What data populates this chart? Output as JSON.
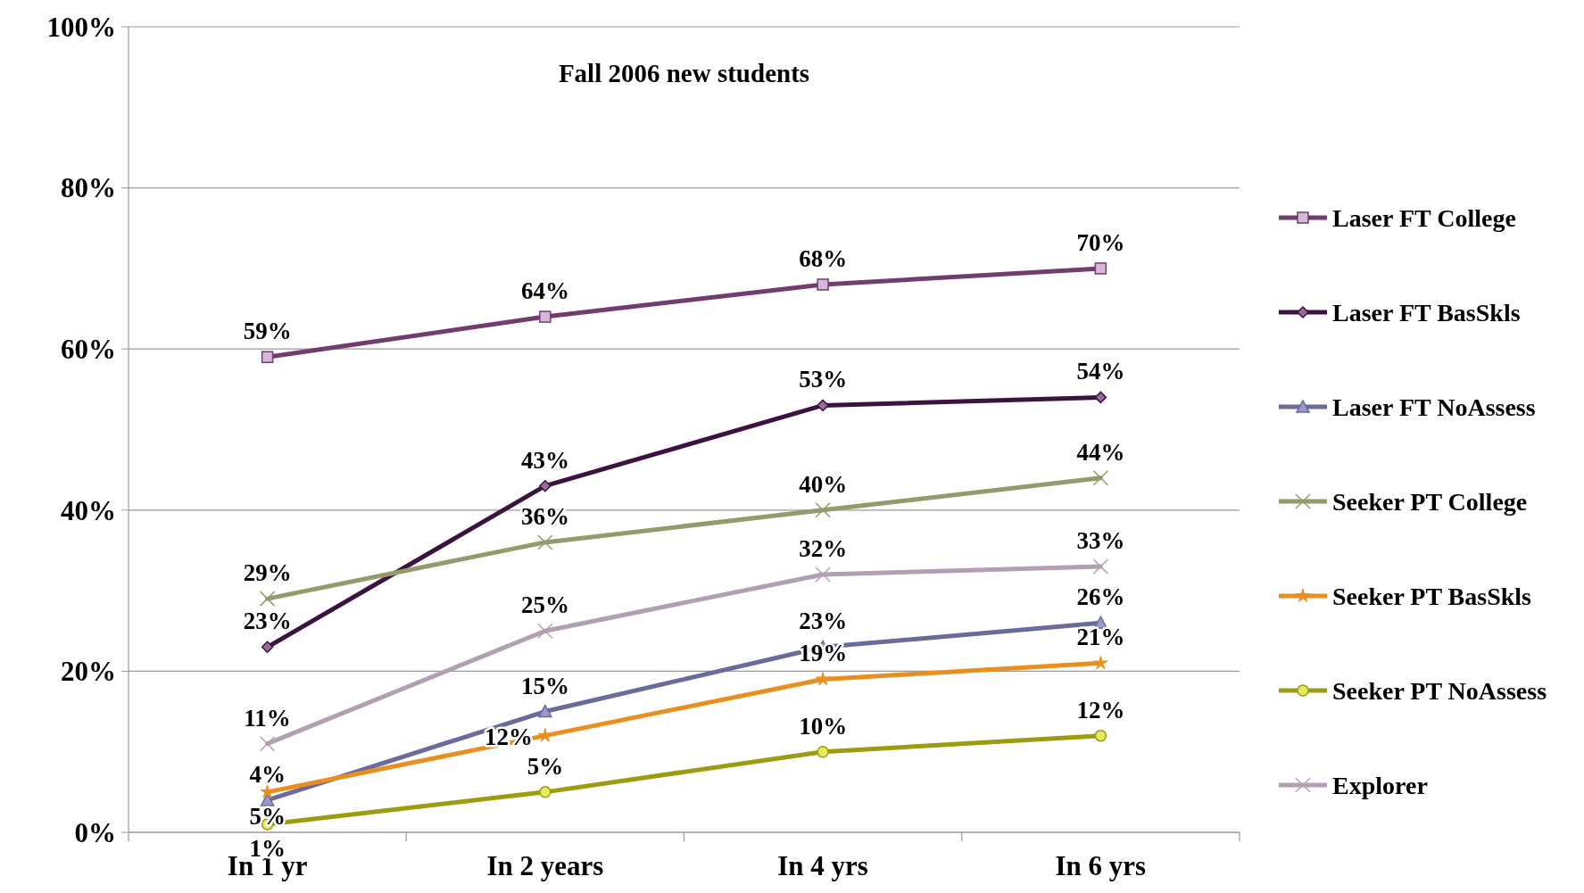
{
  "chart_data": {
    "type": "line",
    "title": "Fall 2006 new students",
    "categories": [
      "In 1 yr",
      "In 2 years",
      "In 4 yrs",
      "In 6 yrs"
    ],
    "ylim": [
      0,
      100
    ],
    "yticks": [
      {
        "value": 0,
        "label": "0%"
      },
      {
        "value": 20,
        "label": "20%"
      },
      {
        "value": 40,
        "label": "40%"
      },
      {
        "value": 60,
        "label": "60%"
      },
      {
        "value": 80,
        "label": "80%"
      },
      {
        "value": 100,
        "label": "100%"
      }
    ],
    "grid": "y",
    "legend": "right",
    "series": [
      {
        "name": "Laser FT College",
        "color": "#713c6f",
        "marker": "square",
        "values": [
          59,
          64,
          68,
          70
        ],
        "value_labels": [
          "59%",
          "64%",
          "68%",
          "70%"
        ]
      },
      {
        "name": "Laser FT BasSkls",
        "color": "#3c1340",
        "marker": "diamond",
        "values": [
          23,
          43,
          53,
          54
        ],
        "value_labels": [
          "23%",
          "43%",
          "53%",
          "54%"
        ]
      },
      {
        "name": "Laser FT NoAssess",
        "color": "#6a6a9c",
        "marker": "triangle",
        "values": [
          4,
          15,
          23,
          26
        ],
        "value_labels": [
          "4%",
          "15%",
          "23%",
          "26%"
        ]
      },
      {
        "name": "Seeker PT College",
        "color": "#949a6c",
        "marker": "cross",
        "values": [
          29,
          36,
          40,
          44
        ],
        "value_labels": [
          "29%",
          "36%",
          "40%",
          "44%"
        ]
      },
      {
        "name": "Seeker PT BasSkls",
        "color": "#e88f1f",
        "marker": "star",
        "values": [
          5,
          12,
          19,
          21
        ],
        "value_labels": [
          "5%",
          "12%",
          "19%",
          "21%"
        ]
      },
      {
        "name": "Seeker PT NoAssess",
        "color": "#9c9c10",
        "marker": "circle",
        "values": [
          1,
          5,
          10,
          12
        ],
        "value_labels": [
          "1%",
          "5%",
          "10%",
          "12%"
        ]
      },
      {
        "name": "Explorer",
        "color": "#b39fb3",
        "marker": "cross",
        "values": [
          11,
          25,
          32,
          33
        ],
        "value_labels": [
          "11%",
          "25%",
          "32%",
          "33%"
        ]
      }
    ]
  }
}
